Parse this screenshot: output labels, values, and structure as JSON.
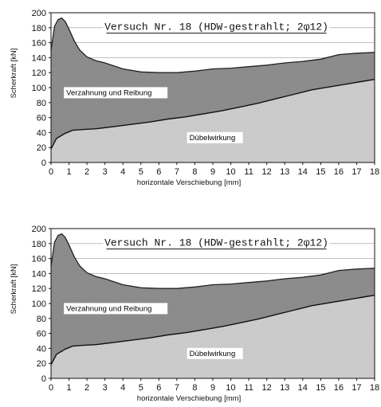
{
  "chart_data": [
    {
      "type": "area",
      "title": "Versuch Nr. 18 (HDW-gestrahlt; 2φ12)",
      "xlabel": "horizontale Verschiebung [mm]",
      "ylabel": "Scherkraft [kN]",
      "xlim": [
        0,
        18
      ],
      "ylim": [
        0,
        200
      ],
      "xticks": [
        "0",
        "1",
        "2",
        "3",
        "4",
        "5",
        "6",
        "7",
        "8",
        "9",
        "10",
        "11",
        "12",
        "13",
        "14",
        "15",
        "16",
        "17",
        "18"
      ],
      "yticks": [
        "0",
        "20",
        "40",
        "60",
        "80",
        "100",
        "120",
        "140",
        "160",
        "180",
        "200"
      ],
      "grid": "horizontal",
      "series": [
        {
          "name": "Dübelwirkung",
          "x": [
            0,
            0.3,
            0.8,
            1.2,
            1.8,
            2.5,
            3.5,
            4.5,
            5.5,
            6.5,
            7.5,
            8.5,
            9.5,
            10.5,
            11.5,
            12.5,
            13.5,
            14.5,
            15.5,
            16.5,
            17.5,
            18
          ],
          "y": [
            18,
            32,
            39,
            43,
            44,
            45,
            48,
            51,
            54,
            58,
            61,
            65,
            69,
            74,
            79,
            85,
            91,
            97,
            101,
            105,
            109,
            111
          ]
        },
        {
          "name": "Verzahnung und Reibung",
          "x": [
            0,
            0.2,
            0.4,
            0.6,
            0.8,
            1.0,
            1.3,
            1.6,
            2.0,
            2.5,
            3.0,
            3.5,
            4.0,
            5.0,
            6.0,
            7.0,
            8.0,
            9.0,
            10.0,
            11.0,
            12.0,
            13.0,
            14.0,
            15.0,
            16.0,
            17.0,
            18.0
          ],
          "y": [
            150,
            182,
            191,
            193,
            188,
            178,
            162,
            150,
            141,
            136,
            133,
            129,
            125,
            121,
            120,
            120,
            122,
            125,
            126,
            128,
            130,
            133,
            135,
            138,
            144,
            146,
            147
          ]
        }
      ],
      "annotations": [
        "Verzahnung und Reibung",
        "Dübelwirkung"
      ]
    },
    {
      "type": "area",
      "title": "Versuch Nr. 18 (HDW-gestrahlt; 2φ12)",
      "xlabel": "horizontale Verschiebung [mm]",
      "ylabel": "Scherkraft [kN]",
      "xlim": [
        0,
        18
      ],
      "ylim": [
        0,
        200
      ],
      "xticks": [
        "0",
        "1",
        "2",
        "3",
        "4",
        "5",
        "6",
        "7",
        "8",
        "9",
        "10",
        "11",
        "12",
        "13",
        "14",
        "15",
        "16",
        "17",
        "18"
      ],
      "yticks": [
        "0",
        "20",
        "40",
        "60",
        "80",
        "100",
        "120",
        "140",
        "160",
        "180",
        "200"
      ],
      "grid": "horizontal",
      "series": [
        {
          "name": "Dübelwirkung",
          "x": [
            0,
            0.3,
            0.8,
            1.2,
            1.8,
            2.5,
            3.5,
            4.5,
            5.5,
            6.5,
            7.5,
            8.5,
            9.5,
            10.5,
            11.5,
            12.5,
            13.5,
            14.5,
            15.5,
            16.5,
            17.5,
            18
          ],
          "y": [
            18,
            32,
            39,
            43,
            44,
            45,
            48,
            51,
            54,
            58,
            61,
            65,
            69,
            74,
            79,
            85,
            91,
            97,
            101,
            105,
            109,
            111
          ]
        },
        {
          "name": "Verzahnung und Reibung",
          "x": [
            0,
            0.2,
            0.4,
            0.6,
            0.8,
            1.0,
            1.3,
            1.6,
            2.0,
            2.5,
            3.0,
            3.5,
            4.0,
            5.0,
            6.0,
            7.0,
            8.0,
            9.0,
            10.0,
            11.0,
            12.0,
            13.0,
            14.0,
            15.0,
            16.0,
            17.0,
            18.0
          ],
          "y": [
            150,
            182,
            191,
            193,
            188,
            178,
            162,
            150,
            141,
            136,
            133,
            129,
            125,
            121,
            120,
            120,
            122,
            125,
            126,
            128,
            130,
            133,
            135,
            138,
            144,
            146,
            147
          ]
        }
      ],
      "annotations": [
        "Verzahnung und Reibung",
        "Dübelwirkung"
      ]
    }
  ]
}
